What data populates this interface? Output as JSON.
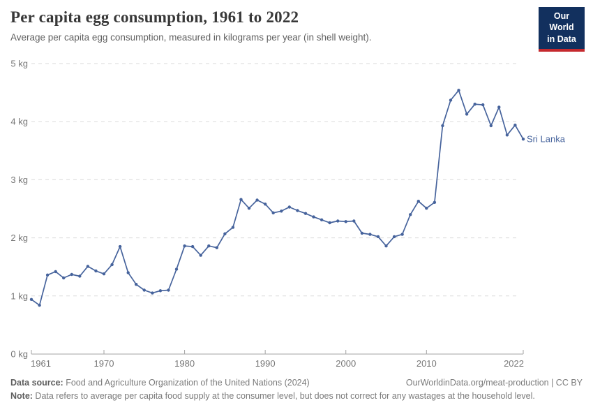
{
  "header": {
    "title": "Per capita egg consumption, 1961 to 2022",
    "subtitle": "Average per capita egg consumption, measured in kilograms per year (in shell weight)."
  },
  "logo": {
    "line1": "Our World",
    "line2": "in Data"
  },
  "colors": {
    "series_blue": "#46639C",
    "grid": "#DADADA",
    "axis": "#A3A3A3",
    "tick_label": "#777777",
    "logo_navy": "#12305E",
    "logo_red": "#C5292E"
  },
  "chart_data": {
    "type": "line",
    "title": "Per capita egg consumption, 1961 to 2022",
    "xlabel": "",
    "ylabel": "kilograms per year",
    "ylim": [
      0,
      5
    ],
    "yticks": [
      0,
      1,
      2,
      3,
      4,
      5
    ],
    "ytick_labels": [
      "0 kg",
      "1 kg",
      "2 kg",
      "3 kg",
      "4 kg",
      "5 kg"
    ],
    "xticks": [
      1961,
      1970,
      1980,
      1990,
      2000,
      2010,
      2022
    ],
    "grid": "horizontal dashed",
    "legend_position": "end-of-line label",
    "years": [
      1961,
      1962,
      1963,
      1964,
      1965,
      1966,
      1967,
      1968,
      1969,
      1970,
      1971,
      1972,
      1973,
      1974,
      1975,
      1976,
      1977,
      1978,
      1979,
      1980,
      1981,
      1982,
      1983,
      1984,
      1985,
      1986,
      1987,
      1988,
      1989,
      1990,
      1991,
      1992,
      1993,
      1994,
      1995,
      1996,
      1997,
      1998,
      1999,
      2000,
      2001,
      2002,
      2003,
      2004,
      2005,
      2006,
      2007,
      2008,
      2009,
      2010,
      2011,
      2012,
      2013,
      2014,
      2015,
      2016,
      2017,
      2018,
      2019,
      2020,
      2021,
      2022
    ],
    "series": [
      {
        "name": "Sri Lanka",
        "color": "#46639C",
        "values": [
          0.94,
          0.84,
          1.36,
          1.42,
          1.31,
          1.37,
          1.34,
          1.51,
          1.43,
          1.38,
          1.54,
          1.85,
          1.4,
          1.2,
          1.1,
          1.05,
          1.09,
          1.1,
          1.46,
          1.86,
          1.85,
          1.7,
          1.86,
          1.83,
          2.07,
          2.18,
          2.66,
          2.51,
          2.65,
          2.58,
          2.43,
          2.46,
          2.53,
          2.47,
          2.42,
          2.36,
          2.31,
          2.26,
          2.29,
          2.28,
          2.29,
          2.08,
          2.06,
          2.02,
          1.86,
          2.02,
          2.06,
          2.4,
          2.63,
          2.51,
          2.61,
          3.93,
          4.37,
          4.54,
          4.13,
          4.3,
          4.29,
          3.93,
          4.25,
          3.77,
          3.94,
          3.7
        ]
      }
    ]
  },
  "footer": {
    "data_source_label": "Data source:",
    "data_source_text": " Food and Agriculture Organization of the United Nations (2024)",
    "link_text": "OurWorldinData.org/meat-production | CC BY",
    "note_label": "Note:",
    "note_text": " Data refers to average per capita food supply at the consumer level, but does not correct for any wastages at the household level."
  }
}
